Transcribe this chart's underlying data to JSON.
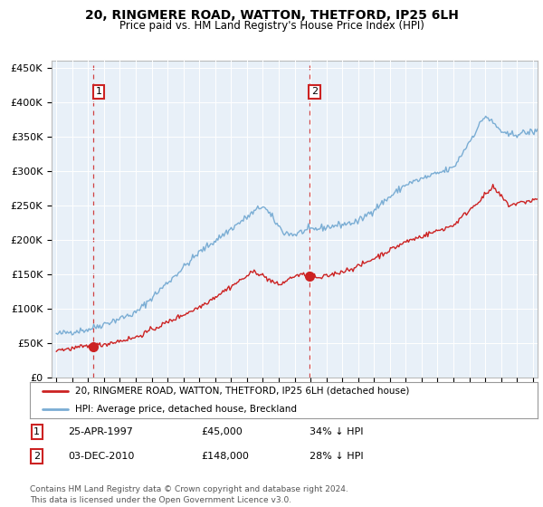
{
  "title": "20, RINGMERE ROAD, WATTON, THETFORD, IP25 6LH",
  "subtitle": "Price paid vs. HM Land Registry's House Price Index (HPI)",
  "ylabel_ticks": [
    "£0",
    "£50K",
    "£100K",
    "£150K",
    "£200K",
    "£250K",
    "£300K",
    "£350K",
    "£400K",
    "£450K"
  ],
  "ytick_values": [
    0,
    50000,
    100000,
    150000,
    200000,
    250000,
    300000,
    350000,
    400000,
    450000
  ],
  "ylim": [
    0,
    460000
  ],
  "xlim_start": 1994.7,
  "xlim_end": 2025.3,
  "sale1_x": 1997.32,
  "sale1_y": 45000,
  "sale1_label": "1",
  "sale2_x": 2010.92,
  "sale2_y": 148000,
  "sale2_label": "2",
  "legend_line1": "20, RINGMERE ROAD, WATTON, THETFORD, IP25 6LH (detached house)",
  "legend_line2": "HPI: Average price, detached house, Breckland",
  "footer": "Contains HM Land Registry data © Crown copyright and database right 2024.\nThis data is licensed under the Open Government Licence v3.0.",
  "hpi_color": "#7aadd4",
  "sale_color": "#cc2222",
  "bg_color": "#e8f0f8",
  "grid_color": "white",
  "sale1_date": "25-APR-1997",
  "sale1_price": "£45,000",
  "sale1_pct": "34% ↓ HPI",
  "sale2_date": "03-DEC-2010",
  "sale2_price": "£148,000",
  "sale2_pct": "28% ↓ HPI"
}
